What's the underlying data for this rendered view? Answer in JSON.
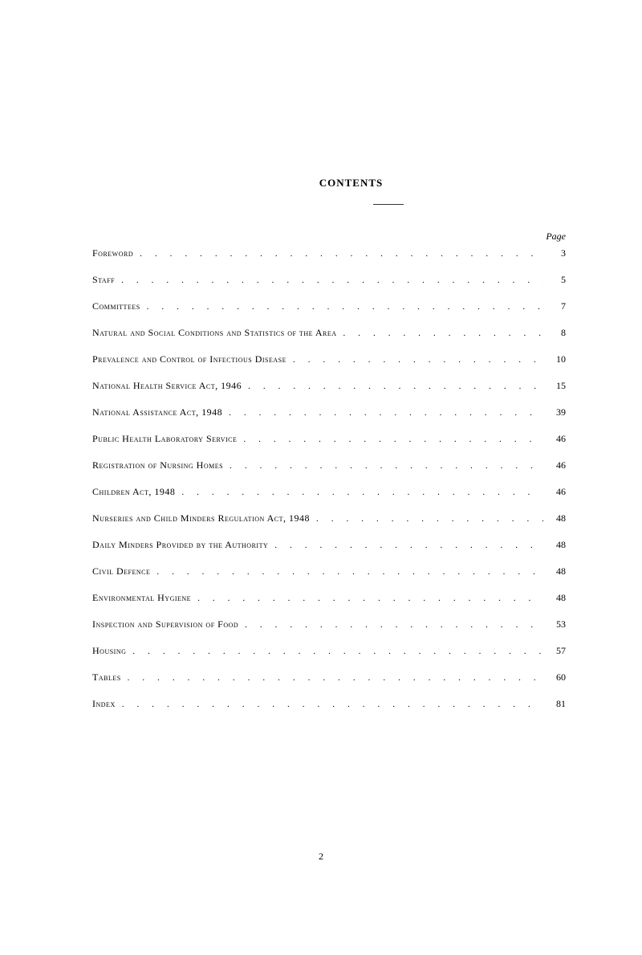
{
  "title": "CONTENTS",
  "pageLabel": "Page",
  "entries": [
    {
      "label": "Foreword",
      "page": "3"
    },
    {
      "label": "Staff",
      "page": "5"
    },
    {
      "label": "Committees",
      "page": "7"
    },
    {
      "label": "Natural and Social Conditions and Statistics of the Area",
      "page": "8"
    },
    {
      "label": "Prevalence and Control of Infectious Disease",
      "page": "10"
    },
    {
      "label": "National Health Service Act, 1946",
      "page": "15"
    },
    {
      "label": "National Assistance Act, 1948",
      "page": "39"
    },
    {
      "label": "Public Health Laboratory Service",
      "page": "46"
    },
    {
      "label": "Registration of Nursing Homes",
      "page": "46"
    },
    {
      "label": "Children Act, 1948",
      "page": "46"
    },
    {
      "label": "Nurseries and Child Minders Regulation Act, 1948",
      "page": "48"
    },
    {
      "label": "Daily Minders Provided by the Authority",
      "page": "48"
    },
    {
      "label": "Civil Defence",
      "page": "48"
    },
    {
      "label": "Environmental Hygiene",
      "page": "48"
    },
    {
      "label": "Inspection and Supervision of Food",
      "page": "53"
    },
    {
      "label": "Housing",
      "page": "57"
    },
    {
      "label": "Tables",
      "page": "60"
    },
    {
      "label": "Index",
      "page": "81"
    }
  ],
  "pageNumber": "2",
  "colors": {
    "background": "#ffffff",
    "text": "#1a1a1a"
  }
}
